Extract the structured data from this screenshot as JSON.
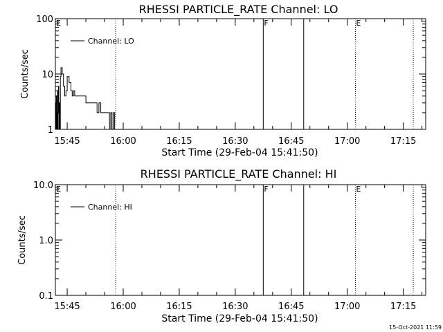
{
  "footer": {
    "timestamp": "15-Oct-2021 11:59"
  },
  "chart_data": [
    {
      "type": "line",
      "title": "RHESSI PARTICLE_RATE Channel: LO",
      "xlabel": "Start Time (29-Feb-04 15:41:50)",
      "ylabel": "Counts/sec",
      "yscale": "log",
      "ylim": [
        1,
        100
      ],
      "xlim": [
        "15:41:50",
        "17:21:00"
      ],
      "x_ticks": [
        "15:45",
        "16:00",
        "16:15",
        "16:30",
        "16:45",
        "17:00",
        "17:15"
      ],
      "y_ticks": [
        "1",
        "10",
        "100"
      ],
      "legend": "top-left",
      "series": [
        {
          "name": "Channel: LO",
          "x": [
            "15:41:55",
            "15:42:00",
            "15:42:05",
            "15:42:10",
            "15:42:15",
            "15:42:20",
            "15:42:25",
            "15:42:30",
            "15:42:35",
            "15:42:40",
            "15:42:45",
            "15:42:50",
            "15:42:55",
            "15:43:00",
            "15:43:10",
            "15:43:20",
            "15:43:40",
            "15:44:00",
            "15:44:20",
            "15:44:40",
            "15:45:00",
            "15:45:30",
            "15:46:00",
            "15:46:20",
            "15:46:40",
            "15:47:00",
            "15:47:30",
            "15:48:00",
            "15:49:00",
            "15:50:00",
            "15:51:00",
            "15:52:00",
            "15:53:00",
            "15:53:30",
            "15:54:00",
            "15:55:00",
            "15:56:00",
            "15:56:20",
            "15:56:40",
            "15:57:00",
            "15:57:20",
            "15:57:40",
            "15:58:00"
          ],
          "y": [
            3,
            1,
            4,
            1,
            2,
            1,
            5,
            1,
            3,
            6,
            2,
            1,
            3,
            1,
            9,
            13,
            10,
            6,
            4,
            5,
            9,
            7,
            5,
            4,
            5,
            4,
            4,
            4,
            4,
            3,
            3,
            3,
            2,
            3,
            2,
            2,
            2,
            1,
            2,
            1,
            2,
            1,
            1
          ]
        }
      ],
      "markers": [
        {
          "time": "15:58:00",
          "style": "dotted",
          "label": ""
        },
        {
          "time": "16:37:30",
          "style": "solid",
          "label": "F"
        },
        {
          "time": "16:48:20",
          "style": "solid",
          "label": ""
        },
        {
          "time": "17:02:10",
          "style": "dotted",
          "label": "E"
        },
        {
          "time": "17:17:40",
          "style": "dotted",
          "label": ""
        }
      ],
      "edge_labels": [
        "E"
      ]
    },
    {
      "type": "line",
      "title": "RHESSI PARTICLE_RATE Channel: HI",
      "xlabel": "Start Time (29-Feb-04 15:41:50)",
      "ylabel": "Counts/sec",
      "yscale": "log",
      "ylim": [
        0.1,
        10
      ],
      "xlim": [
        "15:41:50",
        "17:21:00"
      ],
      "x_ticks": [
        "15:45",
        "16:00",
        "16:15",
        "16:30",
        "16:45",
        "17:00",
        "17:15"
      ],
      "y_ticks": [
        "0.1",
        "1.0",
        "10.0"
      ],
      "legend": "top-left",
      "series": [
        {
          "name": "Channel: HI",
          "x": [],
          "y": []
        }
      ],
      "markers": [
        {
          "time": "15:58:00",
          "style": "dotted",
          "label": ""
        },
        {
          "time": "16:37:30",
          "style": "solid",
          "label": "F"
        },
        {
          "time": "16:48:20",
          "style": "solid",
          "label": ""
        },
        {
          "time": "17:02:10",
          "style": "dotted",
          "label": "E"
        },
        {
          "time": "17:17:40",
          "style": "dotted",
          "label": ""
        }
      ],
      "edge_labels": [
        "E"
      ]
    }
  ]
}
